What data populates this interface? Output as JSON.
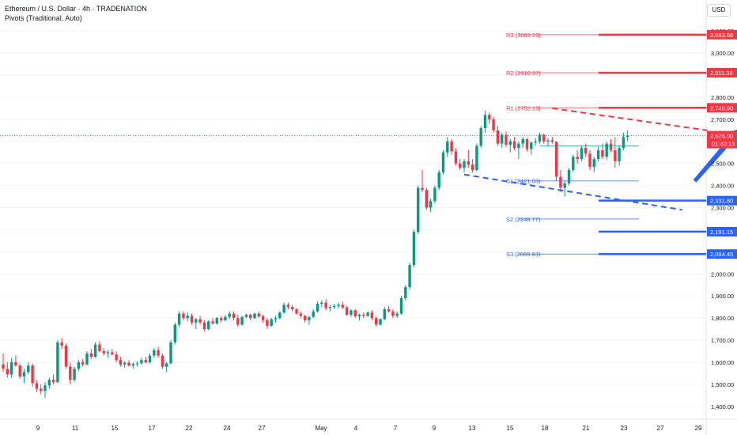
{
  "header": {
    "title": "Ethereum / U.S. Dollar · 4h · TRADENATION",
    "indicator": "Pivots (Traditional, Auto)",
    "currency": "USD"
  },
  "colors": {
    "up": "#089981",
    "down": "#f23645",
    "resistance": "#f23645",
    "support": "#2962ff",
    "arrow": "#2962ff",
    "current_price": "#f23645"
  },
  "chart_data": {
    "type": "candlestick",
    "ylim": [
      1360,
      3140
    ],
    "yticks": [
      1400,
      1500,
      1600,
      1700,
      1800,
      1900,
      2000,
      2100,
      2200,
      2300,
      2400,
      2500,
      2600,
      2700,
      2800,
      2900,
      3000,
      3100
    ],
    "ytick_labels": [
      "1,400.00",
      "1,500.00",
      "1,600.00",
      "1,700.00",
      "1,800.00",
      "1,900.00",
      "2,000.00",
      "2,100.00",
      "2,200.00",
      "2,300.00",
      "2,400.00",
      "2,500.00",
      "2,600.00",
      "2,700.00",
      "2,800.00",
      "2,900.00",
      "3,000.00",
      "3,100.00"
    ],
    "xticks": [
      "9",
      "11",
      "15",
      "17",
      "22",
      "24",
      "27",
      "May",
      "4",
      "7",
      "9",
      "13",
      "15",
      "18",
      "21",
      "23",
      "27",
      "29"
    ],
    "current_price": {
      "label": "2,626.00",
      "countdown": "01:40:13",
      "value": 2626
    },
    "pivots": [
      {
        "label": "R3",
        "value_text": "(3083.23)",
        "value": 3083.23,
        "axis_label": "3,083.56"
      },
      {
        "label": "R2",
        "value_text": "(2910.97)",
        "value": 2910.97,
        "axis_label": "2,911.38"
      },
      {
        "label": "R1",
        "value_text": "(2752.13)",
        "value": 2752.13,
        "axis_label": "2,748.90"
      },
      {
        "label": "S1",
        "value_text": "(2421.03)",
        "value": 2421.03,
        "axis_label": ""
      },
      {
        "label": "S2",
        "value_text": "(2248.77)",
        "value": 2248.77,
        "axis_label": ""
      },
      {
        "label": "S3",
        "value_text": "(2089.93)",
        "value": 2089.93,
        "axis_label": "2,084.45"
      }
    ],
    "extra_levels": [
      {
        "value": 2331.8,
        "axis_label": "2,331.80"
      },
      {
        "value": 2191.15,
        "axis_label": "2,191.15"
      }
    ],
    "trendlines": [
      {
        "from": [
          131,
          2750
        ],
        "to": [
          168,
          2650
        ]
      },
      {
        "from": [
          110,
          2450
        ],
        "to": [
          162,
          2290
        ]
      }
    ],
    "arrow": {
      "from": [
        165,
        2420
      ],
      "to": [
        176,
        2660
      ]
    },
    "candles": [
      [
        1590,
        1640,
        1555,
        1570
      ],
      [
        1570,
        1600,
        1530,
        1545
      ],
      [
        1545,
        1620,
        1530,
        1600
      ],
      [
        1600,
        1630,
        1580,
        1585
      ],
      [
        1585,
        1595,
        1525,
        1535
      ],
      [
        1535,
        1570,
        1505,
        1555
      ],
      [
        1555,
        1600,
        1545,
        1585
      ],
      [
        1585,
        1595,
        1490,
        1505
      ],
      [
        1505,
        1520,
        1465,
        1480
      ],
      [
        1480,
        1500,
        1455,
        1470
      ],
      [
        1470,
        1510,
        1440,
        1495
      ],
      [
        1495,
        1530,
        1480,
        1520
      ],
      [
        1520,
        1545,
        1500,
        1510
      ],
      [
        1510,
        1700,
        1505,
        1690
      ],
      [
        1690,
        1710,
        1660,
        1675
      ],
      [
        1675,
        1685,
        1570,
        1580
      ],
      [
        1580,
        1600,
        1500,
        1520
      ],
      [
        1520,
        1580,
        1510,
        1570
      ],
      [
        1570,
        1610,
        1560,
        1600
      ],
      [
        1600,
        1615,
        1580,
        1590
      ],
      [
        1590,
        1650,
        1585,
        1640
      ],
      [
        1640,
        1660,
        1615,
        1625
      ],
      [
        1625,
        1690,
        1620,
        1680
      ],
      [
        1680,
        1695,
        1645,
        1650
      ],
      [
        1650,
        1665,
        1630,
        1640
      ],
      [
        1640,
        1655,
        1620,
        1645
      ],
      [
        1645,
        1660,
        1630,
        1635
      ],
      [
        1635,
        1650,
        1600,
        1610
      ],
      [
        1610,
        1625,
        1580,
        1590
      ],
      [
        1590,
        1605,
        1575,
        1598
      ],
      [
        1598,
        1610,
        1580,
        1585
      ],
      [
        1585,
        1600,
        1570,
        1592
      ],
      [
        1592,
        1605,
        1580,
        1595
      ],
      [
        1595,
        1620,
        1590,
        1610
      ],
      [
        1610,
        1625,
        1595,
        1600
      ],
      [
        1600,
        1640,
        1595,
        1630
      ],
      [
        1630,
        1665,
        1620,
        1655
      ],
      [
        1655,
        1670,
        1620,
        1630
      ],
      [
        1630,
        1640,
        1570,
        1580
      ],
      [
        1580,
        1600,
        1555,
        1595
      ],
      [
        1595,
        1700,
        1590,
        1690
      ],
      [
        1690,
        1780,
        1680,
        1770
      ],
      [
        1770,
        1830,
        1760,
        1820
      ],
      [
        1820,
        1830,
        1790,
        1800
      ],
      [
        1800,
        1825,
        1785,
        1810
      ],
      [
        1810,
        1820,
        1770,
        1780
      ],
      [
        1780,
        1800,
        1750,
        1795
      ],
      [
        1795,
        1810,
        1770,
        1780
      ],
      [
        1780,
        1790,
        1740,
        1750
      ],
      [
        1750,
        1790,
        1745,
        1785
      ],
      [
        1785,
        1800,
        1770,
        1775
      ],
      [
        1775,
        1805,
        1770,
        1800
      ],
      [
        1800,
        1810,
        1780,
        1790
      ],
      [
        1790,
        1815,
        1785,
        1805
      ],
      [
        1805,
        1830,
        1795,
        1820
      ],
      [
        1820,
        1830,
        1790,
        1800
      ],
      [
        1800,
        1815,
        1760,
        1770
      ],
      [
        1770,
        1810,
        1765,
        1805
      ],
      [
        1805,
        1820,
        1800,
        1815
      ],
      [
        1815,
        1820,
        1790,
        1800
      ],
      [
        1800,
        1825,
        1795,
        1820
      ],
      [
        1820,
        1830,
        1800,
        1808
      ],
      [
        1808,
        1815,
        1780,
        1790
      ],
      [
        1790,
        1800,
        1750,
        1765
      ],
      [
        1765,
        1800,
        1760,
        1795
      ],
      [
        1795,
        1810,
        1780,
        1800
      ],
      [
        1800,
        1830,
        1795,
        1825
      ],
      [
        1825,
        1870,
        1820,
        1860
      ],
      [
        1860,
        1870,
        1840,
        1850
      ],
      [
        1850,
        1860,
        1830,
        1840
      ],
      [
        1840,
        1845,
        1815,
        1820
      ],
      [
        1820,
        1830,
        1800,
        1810
      ],
      [
        1810,
        1815,
        1780,
        1790
      ],
      [
        1790,
        1810,
        1770,
        1805
      ],
      [
        1805,
        1840,
        1800,
        1830
      ],
      [
        1830,
        1875,
        1825,
        1865
      ],
      [
        1865,
        1880,
        1850,
        1870
      ],
      [
        1870,
        1885,
        1835,
        1845
      ],
      [
        1845,
        1860,
        1830,
        1850
      ],
      [
        1850,
        1865,
        1840,
        1855
      ],
      [
        1855,
        1870,
        1845,
        1860
      ],
      [
        1860,
        1875,
        1840,
        1848
      ],
      [
        1848,
        1855,
        1810,
        1815
      ],
      [
        1815,
        1840,
        1805,
        1835
      ],
      [
        1835,
        1840,
        1800,
        1808
      ],
      [
        1808,
        1820,
        1790,
        1815
      ],
      [
        1815,
        1825,
        1800,
        1810
      ],
      [
        1810,
        1830,
        1805,
        1825
      ],
      [
        1825,
        1835,
        1790,
        1800
      ],
      [
        1800,
        1810,
        1760,
        1770
      ],
      [
        1770,
        1800,
        1765,
        1795
      ],
      [
        1795,
        1850,
        1790,
        1840
      ],
      [
        1840,
        1855,
        1825,
        1830
      ],
      [
        1830,
        1840,
        1800,
        1810
      ],
      [
        1810,
        1830,
        1800,
        1820
      ],
      [
        1820,
        1900,
        1815,
        1890
      ],
      [
        1890,
        1950,
        1880,
        1940
      ],
      [
        1940,
        2050,
        1930,
        2040
      ],
      [
        2040,
        2200,
        2030,
        2190
      ],
      [
        2190,
        2400,
        2180,
        2390
      ],
      [
        2390,
        2470,
        2370,
        2380
      ],
      [
        2380,
        2390,
        2290,
        2300
      ],
      [
        2300,
        2340,
        2280,
        2330
      ],
      [
        2330,
        2400,
        2320,
        2390
      ],
      [
        2390,
        2470,
        2380,
        2460
      ],
      [
        2460,
        2560,
        2450,
        2550
      ],
      [
        2550,
        2620,
        2530,
        2600
      ],
      [
        2600,
        2610,
        2540,
        2555
      ],
      [
        2555,
        2570,
        2490,
        2500
      ],
      [
        2500,
        2520,
        2470,
        2480
      ],
      [
        2480,
        2520,
        2460,
        2510
      ],
      [
        2510,
        2560,
        2480,
        2495
      ],
      [
        2495,
        2520,
        2460,
        2470
      ],
      [
        2470,
        2590,
        2465,
        2580
      ],
      [
        2580,
        2670,
        2570,
        2660
      ],
      [
        2660,
        2740,
        2640,
        2720
      ],
      [
        2720,
        2730,
        2680,
        2700
      ],
      [
        2700,
        2710,
        2640,
        2650
      ],
      [
        2650,
        2670,
        2580,
        2590
      ],
      [
        2590,
        2640,
        2570,
        2630
      ],
      [
        2630,
        2645,
        2575,
        2585
      ],
      [
        2585,
        2610,
        2550,
        2600
      ],
      [
        2600,
        2620,
        2560,
        2570
      ],
      [
        2570,
        2600,
        2520,
        2590
      ],
      [
        2590,
        2620,
        2570,
        2610
      ],
      [
        2610,
        2615,
        2555,
        2565
      ],
      [
        2565,
        2600,
        2540,
        2595
      ],
      [
        2595,
        2615,
        2580,
        2600
      ],
      [
        2600,
        2640,
        2590,
        2630
      ],
      [
        2630,
        2635,
        2590,
        2600
      ],
      [
        2600,
        2615,
        2580,
        2605
      ],
      [
        2605,
        2620,
        2590,
        2598
      ],
      [
        2598,
        2600,
        2420,
        2440
      ],
      [
        2440,
        2470,
        2370,
        2390
      ],
      [
        2390,
        2420,
        2350,
        2410
      ],
      [
        2410,
        2480,
        2400,
        2470
      ],
      [
        2470,
        2540,
        2460,
        2530
      ],
      [
        2530,
        2560,
        2500,
        2520
      ],
      [
        2520,
        2580,
        2510,
        2570
      ],
      [
        2570,
        2590,
        2530,
        2545
      ],
      [
        2545,
        2560,
        2470,
        2485
      ],
      [
        2485,
        2530,
        2460,
        2520
      ],
      [
        2520,
        2575,
        2510,
        2560
      ],
      [
        2560,
        2590,
        2520,
        2530
      ],
      [
        2530,
        2600,
        2515,
        2590
      ],
      [
        2590,
        2610,
        2550,
        2560
      ],
      [
        2560,
        2620,
        2480,
        2510
      ],
      [
        2510,
        2580,
        2490,
        2570
      ],
      [
        2570,
        2640,
        2560,
        2620
      ],
      [
        2620,
        2650,
        2600,
        2626
      ]
    ]
  }
}
